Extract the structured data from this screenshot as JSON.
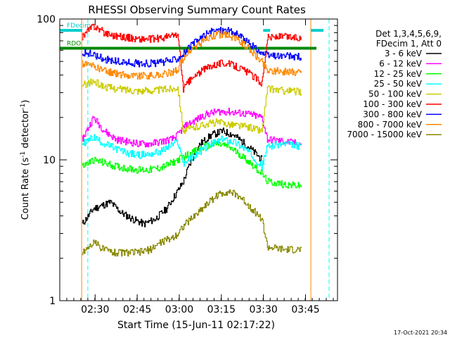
{
  "chart_data": {
    "type": "line",
    "title": "RHESSI Observing Summary Count Rates",
    "xlabel": "Start Time (15-Jun-11 02:17:22)",
    "ylabel_main": "Count Rate (s",
    "ylabel_sup": "-1",
    "ylabel_tail": " detector",
    "ylabel_sup2": "-1",
    "ylabel_end": ")",
    "yscale": "log",
    "ylim": [
      1,
      100
    ],
    "xlim_minutes": [
      0,
      99
    ],
    "x_ticks": [
      {
        "label": "02:30",
        "minute": 12.6
      },
      {
        "label": "02:45",
        "minute": 27.6
      },
      {
        "label": "03:00",
        "minute": 42.6
      },
      {
        "label": "03:15",
        "minute": 57.6
      },
      {
        "label": "03:30",
        "minute": 72.6
      },
      {
        "label": "03:45",
        "minute": 87.6
      }
    ],
    "y_ticks": [
      {
        "label": "1",
        "value": 1
      },
      {
        "label": "10",
        "value": 10
      },
      {
        "label": "100",
        "value": 100
      }
    ],
    "legend": {
      "placement": "right",
      "header": [
        "Det 1,3,4,5,6,9,",
        "FDecim 1, Att 0"
      ]
    },
    "series": [
      {
        "name": "3 - 6 keV",
        "color": "#000000",
        "points": [
          [
            8,
            3.5
          ],
          [
            12,
            4.5
          ],
          [
            18,
            5
          ],
          [
            22,
            4.2
          ],
          [
            26,
            3.8
          ],
          [
            30,
            3.5
          ],
          [
            34,
            3.8
          ],
          [
            38,
            4.5
          ],
          [
            40,
            5.2
          ],
          [
            42,
            6
          ],
          [
            44,
            7
          ],
          [
            46,
            9
          ],
          [
            48,
            11
          ],
          [
            50,
            13
          ],
          [
            54,
            15
          ],
          [
            58,
            16
          ],
          [
            62,
            15
          ],
          [
            66,
            13
          ],
          [
            70,
            11
          ],
          [
            72,
            10
          ]
        ]
      },
      {
        "name": "6 - 12 keV",
        "color": "#ff00ff",
        "points": [
          [
            8,
            14
          ],
          [
            12,
            20
          ],
          [
            16,
            16
          ],
          [
            20,
            14
          ],
          [
            24,
            13.5
          ],
          [
            28,
            13
          ],
          [
            32,
            13
          ],
          [
            36,
            13.5
          ],
          [
            40,
            14
          ],
          [
            42,
            15
          ],
          [
            44,
            17
          ],
          [
            48,
            19
          ],
          [
            52,
            21
          ],
          [
            56,
            22
          ],
          [
            60,
            22
          ],
          [
            64,
            21.5
          ],
          [
            68,
            21
          ],
          [
            72,
            20
          ],
          [
            74,
            14
          ],
          [
            80,
            13.5
          ],
          [
            86,
            13
          ]
        ]
      },
      {
        "name": "12 - 25 keV",
        "color": "#00ff00",
        "points": [
          [
            8,
            9
          ],
          [
            12,
            10
          ],
          [
            16,
            9.5
          ],
          [
            20,
            9
          ],
          [
            24,
            8.7
          ],
          [
            28,
            8.5
          ],
          [
            32,
            8.5
          ],
          [
            36,
            8.8
          ],
          [
            40,
            9.5
          ],
          [
            42,
            10
          ],
          [
            44,
            10.5
          ],
          [
            48,
            11.5
          ],
          [
            52,
            12.5
          ],
          [
            56,
            13
          ],
          [
            60,
            12.5
          ],
          [
            64,
            11
          ],
          [
            68,
            9.5
          ],
          [
            72,
            8
          ],
          [
            74,
            7
          ],
          [
            80,
            6.7
          ],
          [
            86,
            6.5
          ]
        ]
      },
      {
        "name": "25 - 50 keV",
        "color": "#00ffff",
        "points": [
          [
            8,
            13
          ],
          [
            12,
            14.5
          ],
          [
            16,
            13
          ],
          [
            20,
            12
          ],
          [
            24,
            11.2
          ],
          [
            28,
            10.8
          ],
          [
            32,
            11
          ],
          [
            36,
            11.5
          ],
          [
            40,
            12.8
          ],
          [
            42,
            13.5
          ],
          [
            44,
            9.5
          ],
          [
            46,
            10
          ],
          [
            50,
            11.5
          ],
          [
            54,
            13
          ],
          [
            58,
            14
          ],
          [
            62,
            13.5
          ],
          [
            66,
            12
          ],
          [
            70,
            10
          ],
          [
            72,
            9
          ],
          [
            74,
            12.5
          ],
          [
            80,
            13
          ],
          [
            86,
            12.5
          ]
        ]
      },
      {
        "name": "50 - 100 keV",
        "color": "#cccc00",
        "points": [
          [
            8,
            34
          ],
          [
            12,
            36
          ],
          [
            16,
            33
          ],
          [
            20,
            32
          ],
          [
            24,
            31.5
          ],
          [
            28,
            31
          ],
          [
            32,
            31
          ],
          [
            36,
            31.5
          ],
          [
            40,
            32
          ],
          [
            42,
            33
          ],
          [
            44,
            16
          ],
          [
            48,
            17
          ],
          [
            52,
            18
          ],
          [
            56,
            18.5
          ],
          [
            60,
            18
          ],
          [
            64,
            17.5
          ],
          [
            68,
            17
          ],
          [
            72,
            16
          ],
          [
            74,
            32
          ],
          [
            80,
            31
          ],
          [
            86,
            30.5
          ]
        ]
      },
      {
        "name": "100 - 300 keV",
        "color": "#ff0000",
        "points": [
          [
            8,
            75
          ],
          [
            12,
            90
          ],
          [
            16,
            80
          ],
          [
            20,
            76
          ],
          [
            24,
            74
          ],
          [
            28,
            72
          ],
          [
            32,
            72
          ],
          [
            36,
            73
          ],
          [
            40,
            76
          ],
          [
            42,
            78
          ],
          [
            44,
            32
          ],
          [
            46,
            36
          ],
          [
            50,
            42
          ],
          [
            54,
            47
          ],
          [
            58,
            49
          ],
          [
            62,
            47
          ],
          [
            66,
            43
          ],
          [
            70,
            38
          ],
          [
            72,
            35
          ],
          [
            74,
            74
          ],
          [
            80,
            75
          ],
          [
            86,
            73
          ]
        ]
      },
      {
        "name": "300 - 800 keV",
        "color": "#0000ff",
        "points": [
          [
            8,
            58
          ],
          [
            12,
            56
          ],
          [
            16,
            52
          ],
          [
            20,
            50
          ],
          [
            24,
            49
          ],
          [
            28,
            48.5
          ],
          [
            32,
            48.5
          ],
          [
            36,
            49
          ],
          [
            40,
            51
          ],
          [
            42,
            53
          ],
          [
            44,
            57
          ],
          [
            48,
            68
          ],
          [
            52,
            78
          ],
          [
            56,
            84
          ],
          [
            60,
            83
          ],
          [
            64,
            76
          ],
          [
            68,
            66
          ],
          [
            72,
            57
          ],
          [
            74,
            55
          ],
          [
            80,
            54.5
          ],
          [
            86,
            54
          ]
        ]
      },
      {
        "name": "800 - 7000 keV",
        "color": "#ff8800",
        "points": [
          [
            8,
            48
          ],
          [
            12,
            46
          ],
          [
            16,
            43
          ],
          [
            20,
            41
          ],
          [
            24,
            40
          ],
          [
            28,
            39.5
          ],
          [
            32,
            39.5
          ],
          [
            36,
            40
          ],
          [
            40,
            42
          ],
          [
            42,
            44
          ],
          [
            44,
            53
          ],
          [
            48,
            63
          ],
          [
            52,
            72
          ],
          [
            56,
            78
          ],
          [
            60,
            77
          ],
          [
            64,
            70
          ],
          [
            68,
            60
          ],
          [
            72,
            50
          ],
          [
            74,
            43
          ],
          [
            80,
            42.5
          ],
          [
            86,
            42
          ]
        ]
      },
      {
        "name": "7000 - 15000 keV",
        "color": "#888800",
        "points": [
          [
            8,
            2.2
          ],
          [
            12,
            2.6
          ],
          [
            16,
            2.3
          ],
          [
            20,
            2.2
          ],
          [
            24,
            2.2
          ],
          [
            28,
            2.2
          ],
          [
            32,
            2.3
          ],
          [
            36,
            2.6
          ],
          [
            40,
            2.8
          ],
          [
            42,
            3
          ],
          [
            44,
            3.4
          ],
          [
            48,
            4
          ],
          [
            52,
            4.8
          ],
          [
            56,
            5.6
          ],
          [
            60,
            6
          ],
          [
            64,
            5.5
          ],
          [
            68,
            4.6
          ],
          [
            72,
            3.8
          ],
          [
            74,
            2.4
          ],
          [
            80,
            2.3
          ],
          [
            86,
            2.3
          ]
        ]
      }
    ],
    "flags": [
      {
        "name": "RDO",
        "color": "#008800",
        "value": 62,
        "segments": [
          [
            0,
            8
          ],
          [
            8,
            73
          ],
          [
            73,
            89.5
          ],
          [
            89.5,
            91.5
          ]
        ]
      },
      {
        "name": "FDecim",
        "color": "#00cccc",
        "value": 83,
        "segments": [
          [
            0,
            8
          ],
          [
            72.5,
            75
          ],
          [
            89.5,
            94
          ]
        ]
      }
    ],
    "vlines": [
      {
        "color": "#00ffff",
        "dash": true,
        "minute": 10
      },
      {
        "color": "#00ffff",
        "dash": true,
        "minute": 96
      },
      {
        "color": "#ff8800",
        "dash": false,
        "minute": 7.8
      },
      {
        "color": "#ff8800",
        "dash": false,
        "minute": 89.5
      }
    ],
    "timestamp": "17-Oct-2021 20:34"
  }
}
